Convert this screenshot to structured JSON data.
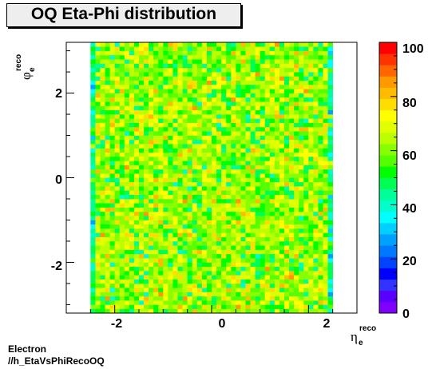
{
  "chart_data": {
    "type": "heatmap",
    "title": "OQ Eta-Phi distribution",
    "xlabel": {
      "main": "η",
      "sub": "e",
      "sup": "reco"
    },
    "ylabel": {
      "main": "φ",
      "sub": "e",
      "sup": "reco"
    },
    "xlim": [
      -3,
      3
    ],
    "ylim": [
      -3.2,
      3.2
    ],
    "x_ticks": [
      -2,
      0,
      2
    ],
    "x_tick_labels": [
      "-2",
      "0",
      "2"
    ],
    "y_ticks": [
      -2,
      0,
      2
    ],
    "y_tick_labels": [
      "-2",
      "0",
      "2"
    ],
    "z_range": [
      0,
      100
    ],
    "z_ticks": [
      0,
      20,
      40,
      60,
      80,
      100
    ],
    "z_tick_labels": [
      "0",
      "20",
      "40",
      "60",
      "80",
      "100"
    ],
    "eta_bins": {
      "min": -2.5,
      "max": 2.5,
      "count": 50
    },
    "phi_bins": {
      "min": -3.2,
      "max": 3.2,
      "count": 64
    },
    "typical_counts": {
      "edge_columns": 45,
      "typical": 62,
      "max": 100
    },
    "palette": [
      "#7f00ff",
      "#5a00ff",
      "#3333ff",
      "#0000ff",
      "#0044ff",
      "#0077ff",
      "#00a0ff",
      "#00cfff",
      "#00ffff",
      "#00ffcc",
      "#00ff99",
      "#00ff55",
      "#00ff00",
      "#55ff00",
      "#88ff00",
      "#bbff00",
      "#e0ff00",
      "#ffff00",
      "#ffdd00",
      "#ffbb00",
      "#ff9900",
      "#ff6600",
      "#ff3300",
      "#ff0000"
    ]
  },
  "footer": {
    "line1": "Electron",
    "line2": "//h_EtaVsPhiRecoOQ"
  }
}
